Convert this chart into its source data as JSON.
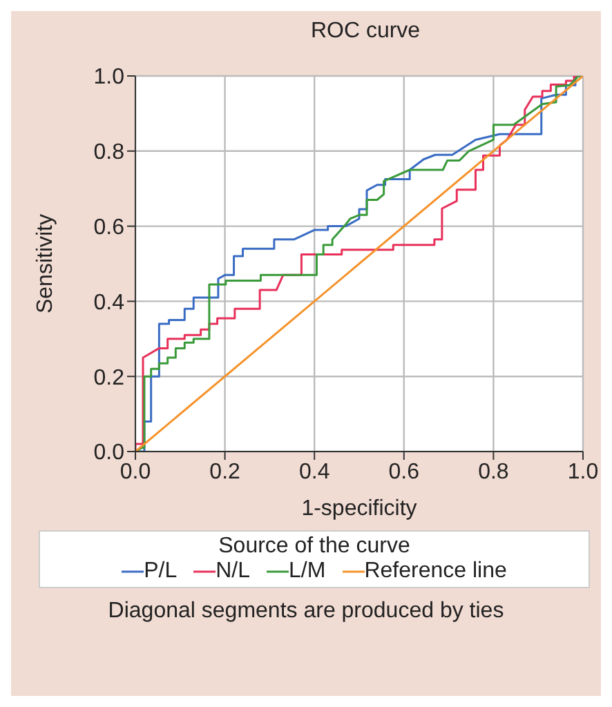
{
  "chart_data": {
    "type": "line",
    "title": "ROC curve",
    "xlabel": "1-specificity",
    "ylabel": "Sensitivity",
    "legend_title": "Source of the curve",
    "xlim": [
      0,
      1
    ],
    "ylim": [
      0,
      1
    ],
    "xticks": [
      {
        "value": 0,
        "label": "0.0"
      },
      {
        "value": 0.2,
        "label": "0.2"
      },
      {
        "value": 0.4,
        "label": "0.4"
      },
      {
        "value": 0.6,
        "label": "0.6"
      },
      {
        "value": 0.8,
        "label": "0.8"
      },
      {
        "value": 1,
        "label": "1.0"
      }
    ],
    "yticks": [
      {
        "value": 0,
        "label": "0.0"
      },
      {
        "value": 0.2,
        "label": "0.2"
      },
      {
        "value": 0.4,
        "label": "0.4"
      },
      {
        "value": 0.6,
        "label": "0.6"
      },
      {
        "value": 0.8,
        "label": "0.8"
      },
      {
        "value": 1,
        "label": "1.0"
      }
    ],
    "grid": true,
    "legend": "bottom",
    "marker": "none",
    "line_style": "solid",
    "annotations": [
      "Diagonal segments are produced by ties"
    ],
    "series": [
      {
        "name": "P/L",
        "color": "#3a6cc4",
        "x": [
          0,
          0.02,
          0.02,
          0.035,
          0.035,
          0.053,
          0.053,
          0.075,
          0.075,
          0.11,
          0.11,
          0.13,
          0.13,
          0.185,
          0.185,
          0.2,
          0.22,
          0.22,
          0.24,
          0.24,
          0.31,
          0.31,
          0.355,
          0.4,
          0.43,
          0.43,
          0.47,
          0.5,
          0.5,
          0.517,
          0.517,
          0.54,
          0.558,
          0.558,
          0.613,
          0.613,
          0.644,
          0.67,
          0.708,
          0.76,
          0.814,
          0.907,
          0.907,
          0.94,
          0.962,
          0.962,
          0.983,
          0.983,
          1
        ],
        "values": [
          0,
          0,
          0.08,
          0.08,
          0.2,
          0.2,
          0.34,
          0.34,
          0.35,
          0.35,
          0.38,
          0.38,
          0.41,
          0.41,
          0.46,
          0.47,
          0.47,
          0.52,
          0.52,
          0.54,
          0.54,
          0.565,
          0.565,
          0.59,
          0.59,
          0.6,
          0.6,
          0.62,
          0.645,
          0.645,
          0.695,
          0.71,
          0.71,
          0.725,
          0.725,
          0.75,
          0.778,
          0.79,
          0.79,
          0.83,
          0.845,
          0.845,
          0.94,
          0.95,
          0.95,
          0.975,
          0.975,
          1,
          1
        ]
      },
      {
        "name": "N/L",
        "color": "#e8305a",
        "x": [
          0,
          0,
          0.017,
          0.017,
          0.053,
          0.072,
          0.072,
          0.11,
          0.11,
          0.146,
          0.146,
          0.165,
          0.165,
          0.183,
          0.183,
          0.222,
          0.222,
          0.278,
          0.278,
          0.315,
          0.33,
          0.371,
          0.371,
          0.461,
          0.461,
          0.576,
          0.576,
          0.668,
          0.668,
          0.685,
          0.685,
          0.718,
          0.718,
          0.76,
          0.76,
          0.777,
          0.777,
          0.814,
          0.814,
          0.83,
          0.85,
          0.87,
          0.87,
          0.888,
          0.909,
          0.909,
          0.928,
          0.928,
          0.962,
          0.962,
          0.98,
          0.98,
          1
        ],
        "values": [
          0,
          0.02,
          0.02,
          0.25,
          0.275,
          0.275,
          0.3,
          0.3,
          0.31,
          0.31,
          0.325,
          0.325,
          0.34,
          0.34,
          0.355,
          0.355,
          0.38,
          0.38,
          0.43,
          0.43,
          0.47,
          0.47,
          0.525,
          0.525,
          0.537,
          0.537,
          0.55,
          0.55,
          0.565,
          0.565,
          0.647,
          0.667,
          0.697,
          0.697,
          0.75,
          0.75,
          0.788,
          0.788,
          0.815,
          0.83,
          0.87,
          0.87,
          0.91,
          0.945,
          0.945,
          0.96,
          0.96,
          0.977,
          0.977,
          0.987,
          0.987,
          1,
          1
        ]
      },
      {
        "name": "L/M",
        "color": "#3a9a3a",
        "x": [
          0,
          0.015,
          0.02,
          0.02,
          0.035,
          0.035,
          0.053,
          0.053,
          0.072,
          0.072,
          0.09,
          0.09,
          0.11,
          0.11,
          0.13,
          0.13,
          0.165,
          0.165,
          0.202,
          0.202,
          0.28,
          0.28,
          0.405,
          0.405,
          0.42,
          0.42,
          0.44,
          0.44,
          0.47,
          0.48,
          0.5,
          0.517,
          0.517,
          0.54,
          0.555,
          0.555,
          0.613,
          0.687,
          0.697,
          0.724,
          0.745,
          0.8,
          0.8,
          0.845,
          0.909,
          0.94,
          0.94,
          0.97,
          0.99,
          1
        ],
        "values": [
          0,
          0.01,
          0.01,
          0.2,
          0.2,
          0.22,
          0.22,
          0.235,
          0.235,
          0.25,
          0.25,
          0.275,
          0.275,
          0.29,
          0.29,
          0.3,
          0.3,
          0.445,
          0.445,
          0.455,
          0.455,
          0.47,
          0.47,
          0.525,
          0.525,
          0.55,
          0.55,
          0.565,
          0.605,
          0.62,
          0.63,
          0.63,
          0.67,
          0.67,
          0.685,
          0.72,
          0.75,
          0.75,
          0.775,
          0.775,
          0.8,
          0.83,
          0.87,
          0.87,
          0.925,
          0.93,
          0.972,
          0.975,
          1,
          1
        ]
      },
      {
        "name": "Reference line",
        "color": "#f5922a",
        "x": [
          0,
          1
        ],
        "values": [
          0,
          1
        ]
      }
    ]
  }
}
